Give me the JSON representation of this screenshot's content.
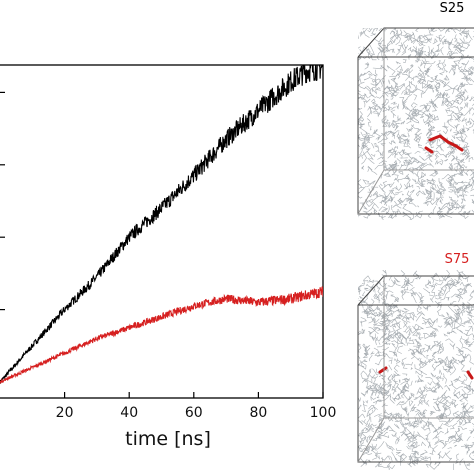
{
  "chart_data": {
    "type": "line",
    "title": "",
    "xlabel": "time [ns]",
    "ylabel": "",
    "xlim": [
      0,
      100
    ],
    "ylim": [
      0,
      100
    ],
    "xticks": [
      20,
      40,
      60,
      80,
      100
    ],
    "x_tick_labels": [
      "20",
      "40",
      "60",
      "80",
      "100"
    ],
    "yticks": [
      20,
      40,
      60,
      80
    ],
    "legend": "none",
    "grid": false,
    "series": [
      {
        "color": "#000000",
        "x": [
          0,
          10,
          20,
          30,
          40,
          50,
          60,
          70,
          80,
          90,
          95,
          100
        ],
        "y": [
          0,
          10,
          20,
          29,
          40,
          48,
          57,
          67,
          75,
          83,
          86,
          87
        ]
      },
      {
        "color": "#d62020",
        "x": [
          0,
          10,
          20,
          30,
          40,
          50,
          60,
          70,
          80,
          90,
          100
        ],
        "y": [
          0,
          4,
          8,
          12,
          15,
          18,
          21,
          23,
          22,
          23,
          25
        ]
      }
    ],
    "snapshots": [
      {
        "label": "S25",
        "label_color": "#000000"
      },
      {
        "label": "S75",
        "label_color": "#d62020"
      }
    ]
  }
}
